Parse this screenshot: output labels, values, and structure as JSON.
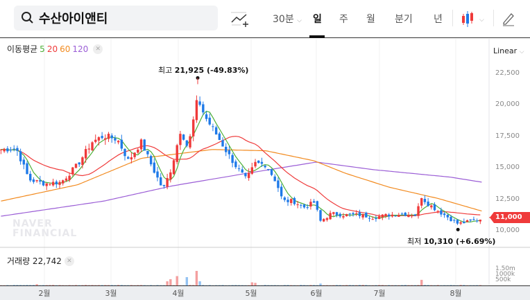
{
  "header": {
    "stock_name": "수산아이앤티",
    "periods": [
      "30분",
      "일",
      "주",
      "월",
      "분기",
      "년"
    ],
    "active_period": "일",
    "chart_type_icon": "candlestick-icon",
    "draw_icon": "pencil-icon",
    "indicator_icon": "add-indicator-icon"
  },
  "legend": {
    "label": "이동평균",
    "mas": [
      {
        "label": "5",
        "color": "#4caf37"
      },
      {
        "label": "20",
        "color": "#ef3a3a"
      },
      {
        "label": "60",
        "color": "#f28a1e"
      },
      {
        "label": "120",
        "color": "#9b5ed6"
      }
    ]
  },
  "scale_label": "Linear",
  "watermark": "NAVER\nFINANCIAL",
  "colors": {
    "up": "#ef3a3a",
    "down": "#1f7ae8",
    "up_vol": "#f4a0a0",
    "down_vol": "#94c2f2"
  },
  "volume": {
    "label": "거래량 22,742",
    "ticks": [
      "1.50m",
      "1000k",
      "500k"
    ]
  },
  "current_price": "11,000",
  "high_annotation": {
    "label": "최고",
    "value": "21,925 (-49.83%)",
    "date": "04-09",
    "price": 21925
  },
  "low_annotation": {
    "label": "최저",
    "value": "10,310 (+6.69%)",
    "date": "08-02",
    "price": 10310
  },
  "chart_data": {
    "type": "candlestick",
    "y_ticks": [
      "22,500",
      "20,000",
      "17,500",
      "15,000",
      "12,500",
      "10,000"
    ],
    "ylim": [
      9400,
      23500
    ],
    "x_ticks": [
      "2월",
      "3월",
      "4월",
      "5월",
      "6월",
      "7월",
      "8월"
    ],
    "close_path": [
      [
        "01-12",
        16400
      ],
      [
        "01-19",
        16500
      ],
      [
        "01-25",
        14000
      ],
      [
        "02-01",
        13700
      ],
      [
        "02-08",
        13800
      ],
      [
        "02-15",
        15200
      ],
      [
        "02-21",
        17000
      ],
      [
        "02-26",
        17500
      ],
      [
        "03-04",
        17200
      ],
      [
        "03-09",
        15500
      ],
      [
        "03-15",
        17000
      ],
      [
        "03-20",
        15000
      ],
      [
        "03-25",
        13200
      ],
      [
        "03-29",
        15000
      ],
      [
        "04-02",
        18000
      ],
      [
        "04-05",
        16500
      ],
      [
        "04-09",
        20500
      ],
      [
        "04-12",
        19000
      ],
      [
        "04-17",
        17500
      ],
      [
        "04-21",
        16200
      ],
      [
        "04-25",
        15000
      ],
      [
        "04-29",
        14000
      ],
      [
        "05-03",
        15300
      ],
      [
        "05-08",
        15200
      ],
      [
        "05-13",
        13800
      ],
      [
        "05-16",
        12300
      ],
      [
        "05-21",
        12300
      ],
      [
        "05-26",
        11800
      ],
      [
        "05-31",
        12200
      ],
      [
        "06-03",
        10700
      ],
      [
        "06-08",
        11300
      ],
      [
        "06-15",
        11200
      ],
      [
        "06-22",
        11200
      ],
      [
        "06-28",
        11000
      ],
      [
        "07-05",
        11200
      ],
      [
        "07-10",
        11300
      ],
      [
        "07-16",
        11200
      ],
      [
        "07-18",
        12700
      ],
      [
        "07-20",
        12200
      ],
      [
        "07-25",
        11500
      ],
      [
        "07-29",
        11000
      ],
      [
        "08-02",
        10500
      ],
      [
        "08-08",
        10700
      ],
      [
        "08-13",
        10900
      ]
    ],
    "ma60": [
      [
        "01-12",
        12300
      ],
      [
        "02-15",
        13600
      ],
      [
        "03-15",
        15700
      ],
      [
        "04-15",
        16400
      ],
      [
        "05-08",
        16300
      ],
      [
        "05-31",
        15500
      ],
      [
        "06-15",
        14500
      ],
      [
        "07-05",
        13400
      ],
      [
        "07-25",
        12500
      ],
      [
        "08-13",
        11500
      ]
    ],
    "ma120": [
      [
        "01-12",
        11100
      ],
      [
        "02-26",
        12300
      ],
      [
        "03-29",
        13500
      ],
      [
        "04-29",
        14500
      ],
      [
        "06-01",
        15400
      ],
      [
        "06-28",
        14800
      ],
      [
        "07-30",
        14200
      ],
      [
        "08-13",
        13800
      ]
    ],
    "volume_spikes": [
      [
        "01-29",
        120000
      ],
      [
        "03-27",
        400000
      ],
      [
        "03-29",
        600000
      ],
      [
        "04-01",
        900000
      ],
      [
        "04-05",
        800000
      ],
      [
        "04-08",
        1400000
      ],
      [
        "04-10",
        400000
      ],
      [
        "05-01",
        300000
      ],
      [
        "05-03",
        250000
      ],
      [
        "06-03",
        180000
      ],
      [
        "07-18",
        540000
      ]
    ]
  }
}
